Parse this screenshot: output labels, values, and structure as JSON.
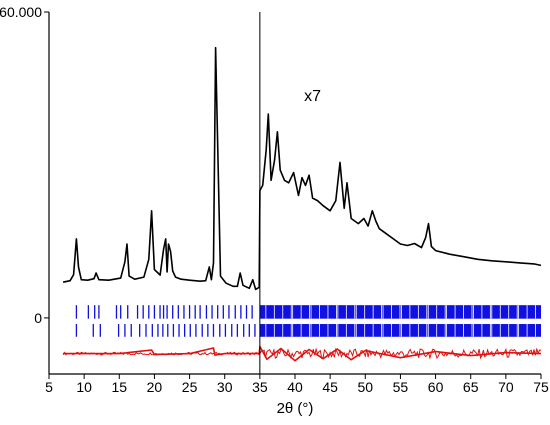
{
  "chart_data": {
    "type": "line",
    "title": "",
    "xlabel": "2θ (°)",
    "ylabel": "",
    "xlim": [
      5,
      75
    ],
    "ylim": [
      -11000,
      60000
    ],
    "x_ticks": [
      5,
      10,
      15,
      20,
      25,
      30,
      35,
      40,
      45,
      50,
      55,
      60,
      65,
      70,
      75
    ],
    "y_ticks": [
      {
        "value": 0,
        "label": "0"
      },
      {
        "value": 60000,
        "label": "60.000"
      }
    ],
    "grid": false,
    "legend": "none",
    "annotations": [
      {
        "text": "x7",
        "x": 42.5,
        "y": 42500
      },
      {
        "text": "",
        "type": "vertical-line",
        "x": 35
      }
    ],
    "colors": {
      "observed": "#000000",
      "reflections": "#1010e0",
      "difference": "#e01010"
    },
    "series": [
      {
        "name": "",
        "role": "observed",
        "x": [
          7,
          8,
          8.5,
          8.9,
          9.2,
          9.6,
          10.5,
          11.4,
          11.7,
          12.1,
          13.5,
          15.2,
          15.8,
          16.1,
          16.4,
          17.2,
          18.5,
          19.2,
          19.6,
          20,
          20.8,
          21.3,
          21.6,
          21.8,
          22,
          22.3,
          22.6,
          23,
          23.8,
          25,
          26.5,
          27.3,
          27.8,
          28.1,
          28.4,
          28.7,
          29.4,
          30.2,
          31.2,
          31.8,
          32.2,
          32.6,
          33.5,
          34,
          34.4,
          34.9,
          35,
          35.4,
          35.9,
          36.2,
          36.6,
          37.1,
          37.5,
          37.9,
          38.5,
          39.1,
          39.8,
          40.5,
          41,
          41.5,
          42,
          42.5,
          43.2,
          44,
          45,
          45.8,
          46.4,
          47,
          47.4,
          48,
          49,
          49.8,
          50.4,
          51,
          51.5,
          52,
          53,
          54,
          55,
          56,
          57,
          58,
          58.6,
          59,
          59.4,
          60,
          62,
          64,
          66,
          68,
          70,
          72,
          74,
          75
        ],
        "y": [
          7000,
          7300,
          8500,
          15500,
          10000,
          7500,
          7400,
          7700,
          8800,
          7500,
          7400,
          7800,
          11000,
          14500,
          8200,
          7600,
          8000,
          11500,
          21000,
          9500,
          8400,
          13500,
          15500,
          9000,
          14500,
          13000,
          9200,
          8000,
          7600,
          7400,
          7200,
          7300,
          10000,
          7500,
          10800,
          53000,
          8200,
          6800,
          6200,
          6200,
          8800,
          6400,
          5800,
          7500,
          5600,
          6000,
          25000,
          26000,
          33000,
          40000,
          27000,
          31000,
          36500,
          29000,
          27000,
          26500,
          28500,
          24000,
          27500,
          26000,
          28000,
          23500,
          23000,
          22000,
          21000,
          23000,
          30500,
          21500,
          26500,
          19500,
          18500,
          19500,
          18000,
          21000,
          19000,
          17500,
          16500,
          15500,
          14500,
          14200,
          14600,
          13800,
          15800,
          18500,
          14000,
          13200,
          12500,
          12000,
          11500,
          11200,
          11000,
          10800,
          10600,
          10300
        ]
      },
      {
        "name": "",
        "role": "difference",
        "baseline": -7000,
        "x": [
          7,
          10,
          15,
          19.6,
          20,
          25,
          28.4,
          28.6,
          30,
          34.9,
          35,
          36,
          38,
          40,
          42,
          44,
          46,
          48,
          50,
          55,
          60,
          65,
          70,
          75
        ],
        "y": [
          -7000,
          -7000,
          -7000,
          -6300,
          -7200,
          -7000,
          -5900,
          -7300,
          -7000,
          -7000,
          -5600,
          -8100,
          -6000,
          -8400,
          -6200,
          -8000,
          -6100,
          -8200,
          -6400,
          -7800,
          -6600,
          -7400,
          -6800,
          -7000
        ]
      }
    ],
    "reflection_rows": [
      {
        "name": "",
        "y_range": [
          -150,
          2500
        ],
        "x_start": 8.9,
        "x_end": 75,
        "visible_ticks": [
          8.9,
          10.6,
          11.5,
          12.1,
          14.6,
          15.2,
          16.2,
          17.6,
          18.4,
          19.2,
          20.0,
          20.8,
          21.3,
          21.8,
          22.6,
          23.4,
          24.2,
          25.0,
          25.8,
          26.5,
          27.4,
          28.2,
          29.0,
          29.8,
          30.6,
          31.5,
          32.3,
          33.1,
          33.9
        ]
      },
      {
        "name": "",
        "y_range": [
          -3700,
          -1200
        ],
        "x_start": 8.9,
        "x_end": 75,
        "visible_ticks": [
          8.9,
          11.3,
          12.3,
          14.9,
          15.8,
          16.7,
          17.9,
          18.8,
          19.7,
          20.5,
          21.2,
          21.9,
          22.7,
          23.5,
          24.3,
          25.1,
          25.9,
          26.8,
          27.6,
          28.4,
          29.3,
          30.1,
          31.0,
          31.8,
          32.7,
          33.5,
          34.3
        ]
      }
    ]
  }
}
